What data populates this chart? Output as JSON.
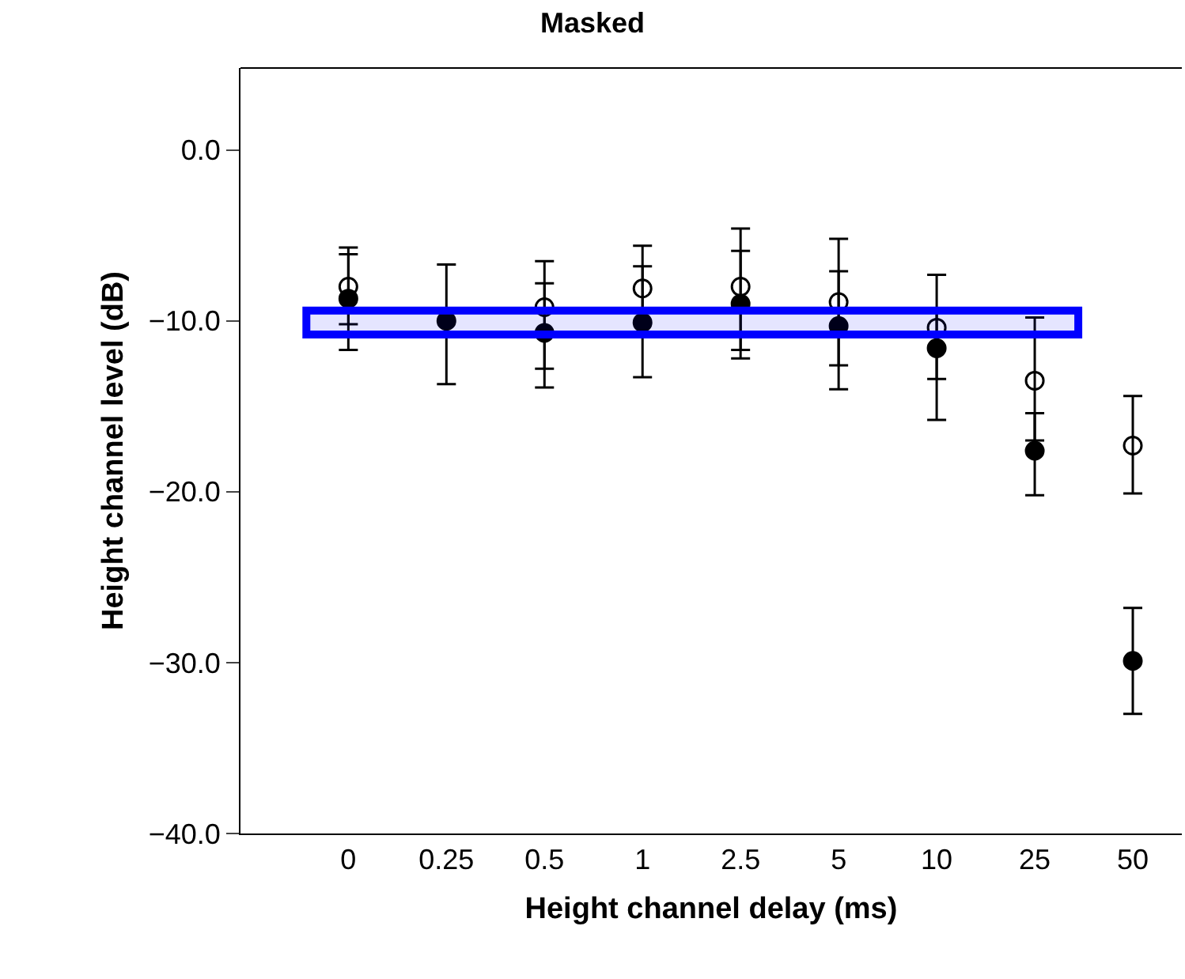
{
  "chart_data": {
    "type": "scatter",
    "title": "Masked",
    "xlabel": "Height channel delay (ms)",
    "ylabel": "Height channel level (dB)",
    "categories": [
      "0",
      "0.25",
      "0.5",
      "1",
      "2.5",
      "5",
      "10",
      "25",
      "50"
    ],
    "series": [
      {
        "color": "#000000",
        "marker": "circle-open",
        "values": [
          -8.0,
          null,
          -9.2,
          -8.1,
          -8.0,
          -8.9,
          -10.4,
          -13.5,
          -17.3
        ],
        "errors": [
          [
            -10.2,
            -5.7
          ],
          null,
          [
            -12.8,
            -6.5
          ],
          [
            -10.8,
            -5.6
          ],
          [
            -11.7,
            -4.6
          ],
          [
            -12.6,
            -5.2
          ],
          [
            -13.4,
            -7.3
          ],
          [
            -17.0,
            -9.8
          ],
          [
            -20.1,
            -14.4
          ]
        ]
      },
      {
        "color": "#000000",
        "marker": "circle",
        "values": [
          -8.7,
          -10.0,
          -10.7,
          -10.1,
          -9.0,
          -10.3,
          -11.6,
          -17.6,
          -29.9
        ],
        "errors": [
          [
            -11.7,
            -6.1
          ],
          [
            -13.7,
            -6.7
          ],
          [
            -13.9,
            -7.8
          ],
          [
            -13.3,
            -6.8
          ],
          [
            -12.2,
            -5.9
          ],
          [
            -14.0,
            -7.1
          ],
          [
            -15.8,
            -9.3
          ],
          [
            -20.2,
            -15.4
          ],
          [
            -33.0,
            -26.8
          ]
        ]
      }
    ],
    "ylim": [
      -40,
      4.8
    ],
    "yticks": [
      {
        "value": 0,
        "label": "0.0"
      },
      {
        "value": -10,
        "label": "−10.0"
      },
      {
        "value": -20,
        "label": "−20.0"
      },
      {
        "value": -30,
        "label": "−30.0"
      },
      {
        "value": -40,
        "label": "−40.0"
      }
    ],
    "bands": [
      {
        "axis": "y",
        "from": -9.4,
        "to": -10.8,
        "color": "#0000ff"
      }
    ]
  }
}
